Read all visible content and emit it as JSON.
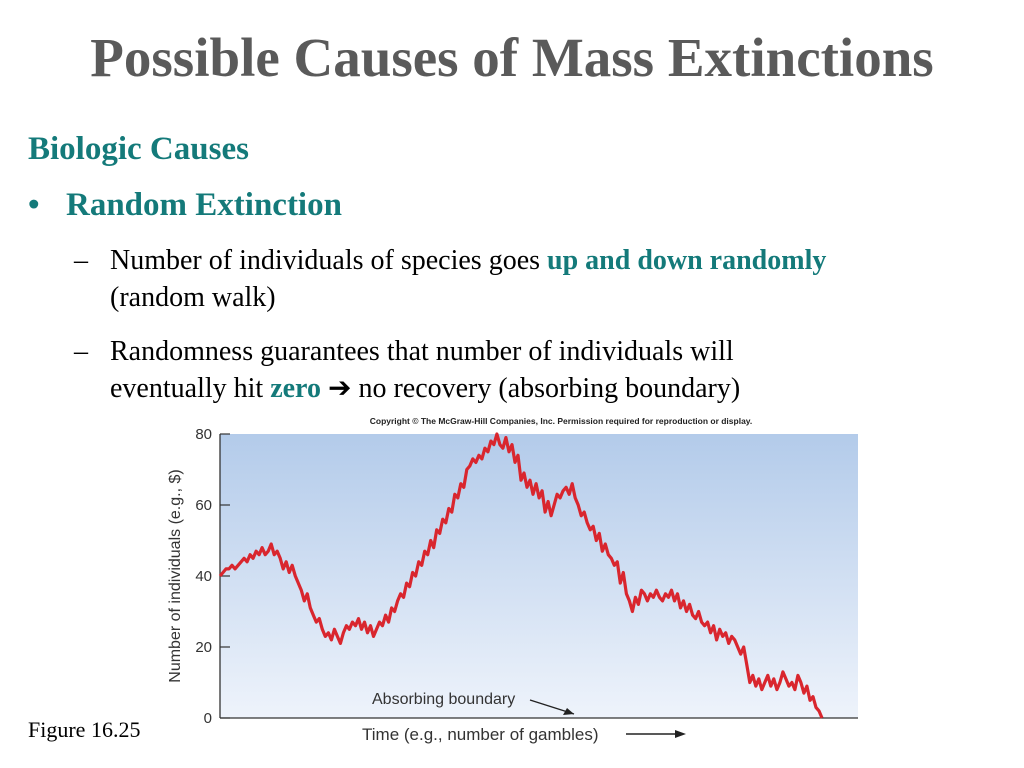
{
  "slide": {
    "title": "Possible Causes of Mass Extinctions",
    "section": "Biologic Causes",
    "bullet": {
      "symbol": "•",
      "label": "Random Extinction"
    },
    "sub_items": [
      {
        "dash": "–",
        "line1_prefix": "Number of individuals of species goes ",
        "line1_highlight": "up and down randomly",
        "line2": "(random walk)"
      },
      {
        "dash": "–",
        "line1": "Randomness guarantees that number of individuals will",
        "line2_prefix": "eventually hit ",
        "line2_highlight": "zero",
        "line2_arrow": "➔",
        "line2_suffix": " no recovery (absorbing boundary)"
      }
    ],
    "figure_caption": "Figure 16.25"
  },
  "chart_data": {
    "type": "line",
    "copyright": "Copyright © The McGraw-Hill Companies, Inc. Permission required for reproduction or display.",
    "xlabel": "Time (e.g., number of gambles)",
    "ylabel": "Number of individuals (e.g., $)",
    "ylim": [
      0,
      80
    ],
    "yticks": [
      "0",
      "20",
      "40",
      "60",
      "80"
    ],
    "annotation": "Absorbing boundary",
    "colors": {
      "line": "#d9262e",
      "bg_top": "#b3cbea",
      "bg_bottom": "#eef3fb",
      "axis": "#333333"
    },
    "series": [
      {
        "x": [
          0,
          1,
          2,
          3,
          4,
          5,
          6,
          7,
          8,
          9,
          10,
          11,
          12,
          13,
          14,
          15,
          16,
          17,
          18,
          19,
          20,
          21,
          22,
          23,
          24,
          25,
          26,
          27,
          28,
          29,
          30,
          31,
          32,
          33,
          34,
          35,
          36,
          37,
          38,
          39,
          40,
          41,
          42,
          43,
          44,
          45,
          46,
          47,
          48,
          49,
          50,
          51,
          52,
          53,
          54,
          55,
          56,
          57,
          58,
          59,
          60,
          61,
          62,
          63,
          64,
          65,
          66,
          67,
          68,
          69,
          70,
          71,
          72,
          73,
          74,
          75,
          76,
          77,
          78,
          79,
          80,
          81,
          82,
          83,
          84,
          85,
          86,
          87,
          88,
          89,
          90,
          91,
          92,
          93,
          94,
          95,
          96,
          97,
          98,
          99,
          100,
          101,
          102,
          103,
          104,
          105,
          106,
          107,
          108,
          109,
          110,
          111,
          112,
          113,
          114,
          115,
          116,
          117,
          118,
          119,
          120,
          121,
          122,
          123,
          124,
          125,
          126,
          127,
          128,
          129,
          130,
          131,
          132,
          133,
          134,
          135,
          136,
          137,
          138,
          139,
          140,
          141,
          142,
          143,
          144,
          145,
          146,
          147,
          148,
          149,
          150,
          151,
          152,
          153,
          154,
          155,
          156,
          157,
          158,
          159,
          160,
          161,
          162,
          163,
          164,
          165,
          166,
          167,
          168,
          169,
          170,
          171,
          172,
          173,
          174,
          175,
          176,
          177,
          178,
          179,
          180,
          181,
          182,
          183,
          184,
          185,
          186,
          187,
          188,
          189,
          190,
          191,
          192,
          193,
          194,
          195,
          196,
          197,
          198,
          199,
          200
        ],
        "values": [
          40,
          41,
          42,
          42,
          43,
          42,
          43,
          44,
          45,
          44,
          46,
          45,
          47,
          46,
          48,
          46,
          47,
          49,
          46,
          47,
          45,
          42,
          44,
          41,
          43,
          40,
          38,
          36,
          33,
          35,
          31,
          29,
          27,
          28,
          25,
          23,
          24,
          22,
          25,
          23,
          21,
          24,
          26,
          25,
          27,
          26,
          28,
          25,
          27,
          24,
          26,
          23,
          25,
          27,
          26,
          29,
          27,
          31,
          30,
          33,
          35,
          34,
          38,
          37,
          41,
          40,
          44,
          43,
          47,
          46,
          50,
          48,
          53,
          52,
          56,
          55,
          59,
          58,
          63,
          62,
          66,
          65,
          70,
          71,
          73,
          72,
          74,
          73,
          76,
          75,
          78,
          77,
          80,
          77,
          76,
          79,
          75,
          77,
          72,
          74,
          67,
          69,
          65,
          67,
          63,
          66,
          62,
          64,
          58,
          61,
          57,
          60,
          63,
          62,
          64,
          65,
          63,
          66,
          62,
          60,
          57,
          58,
          55,
          53,
          54,
          50,
          52,
          47,
          49,
          46,
          45,
          43,
          44,
          38,
          41,
          35,
          33,
          30,
          34,
          32,
          36,
          35,
          33,
          35,
          34,
          36,
          34,
          33,
          35,
          34,
          36,
          33,
          35,
          31,
          33,
          30,
          32,
          29,
          28,
          30,
          27,
          26,
          27,
          24,
          26,
          22,
          25,
          23,
          24,
          21,
          23,
          22,
          20,
          18,
          20,
          15,
          10,
          12,
          9,
          11,
          8,
          10,
          12,
          9,
          11,
          8,
          10,
          13,
          11,
          9,
          10,
          8,
          12,
          10,
          7,
          9,
          5,
          6,
          3,
          2,
          0
        ],
        "name": ""
      }
    ]
  }
}
